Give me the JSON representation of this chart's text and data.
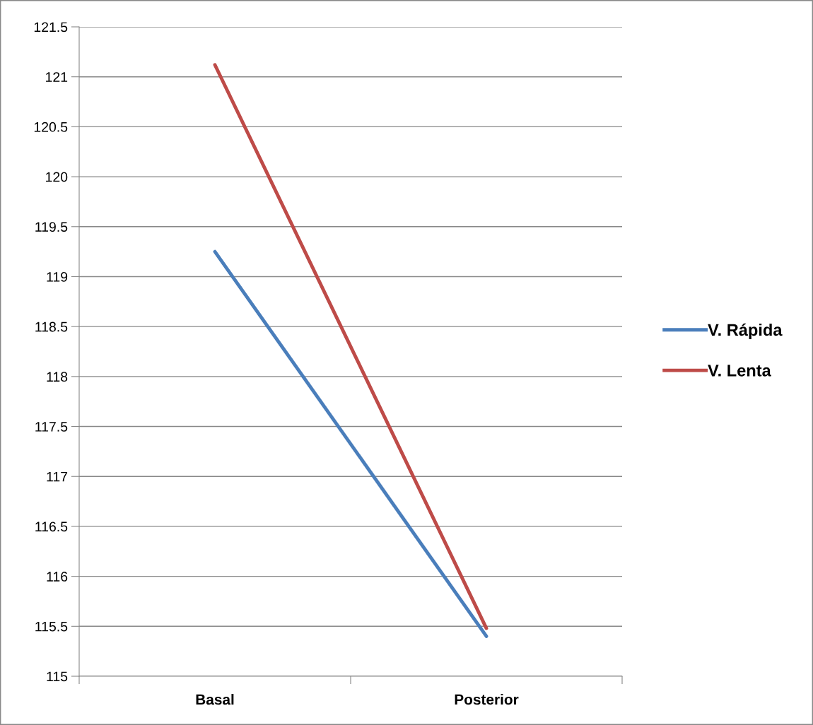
{
  "chart_data": {
    "type": "line",
    "categories": [
      "Basal",
      "Posterior"
    ],
    "series": [
      {
        "name": "V. Rápida",
        "color": "#4a7ebb",
        "values": [
          119.25,
          115.4
        ]
      },
      {
        "name": "V. Lenta",
        "color": "#be4b48",
        "values": [
          121.12,
          115.48
        ]
      }
    ],
    "ylim": [
      115,
      121.5
    ],
    "yticks": [
      115,
      115.5,
      116,
      116.5,
      117,
      117.5,
      118,
      118.5,
      119,
      119.5,
      120,
      120.5,
      121,
      121.5
    ],
    "grid": "y",
    "legend": "right",
    "marker": "none",
    "line_style": "solid"
  }
}
